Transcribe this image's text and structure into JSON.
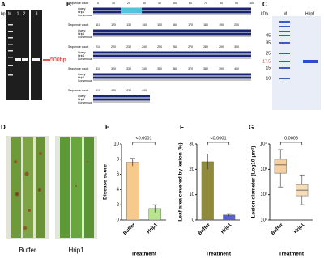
{
  "panels": {
    "A": {
      "label": "A",
      "bp": "bp",
      "lanes": [
        "M",
        "1",
        "2",
        "3"
      ],
      "arrow_label": "500bp"
    },
    "B": {
      "label": "B",
      "row_header": "Sequence count",
      "seq_names": [
        "Query",
        "Hrip1",
        "Consensus"
      ],
      "rows": [
        [
          0,
          10,
          20,
          30,
          40,
          50,
          60,
          70,
          80,
          90,
          100
        ],
        [
          110,
          120,
          130,
          140,
          150,
          160,
          170,
          180,
          190,
          200
        ],
        [
          210,
          220,
          230,
          240,
          250,
          260,
          270,
          280,
          290,
          300
        ],
        [
          310,
          320,
          330,
          340,
          350,
          360,
          370,
          380,
          390,
          400
        ],
        [
          410,
          420,
          430,
          440
        ]
      ]
    },
    "C": {
      "label": "C",
      "unit": "kDa",
      "lanes": [
        "M",
        "Hrip1"
      ],
      "markers": [
        "45",
        "35",
        "25",
        "17.5",
        "15",
        "10"
      ]
    },
    "D": {
      "label": "D",
      "photos": [
        "Buffer",
        "Hrip1"
      ]
    }
  },
  "chart_data": [
    {
      "type": "bar",
      "panel_label": "E",
      "y_label": "Disease score",
      "x_label": "Treatment",
      "categories": [
        "Buffer",
        "Hrip1"
      ],
      "values": [
        7.6,
        1.5
      ],
      "errors": [
        0.5,
        0.5
      ],
      "colors": [
        "#f8c98c",
        "#b8e48f"
      ],
      "ylim": [
        0,
        10
      ],
      "yticks": [
        0,
        2,
        4,
        6,
        8,
        10
      ],
      "annotation": "<0.0001"
    },
    {
      "type": "bar",
      "panel_label": "F",
      "y_label": "Leaf area covered by lesion (%)",
      "x_label": "Treatment",
      "categories": [
        "Buffer",
        "Hrip1"
      ],
      "values": [
        23,
        2
      ],
      "errors": [
        3,
        0.5
      ],
      "colors": [
        "#8f8a3c",
        "#5a5fd6"
      ],
      "ylim": [
        0,
        30
      ],
      "yticks": [
        0,
        10,
        20,
        30
      ],
      "annotation": "<0.0001"
    },
    {
      "type": "box",
      "panel_label": "G",
      "y_label": "Lesion diameter (Log10 μm²)",
      "x_label": "Treatment",
      "log_scale": true,
      "categories": [
        "Buffer",
        "Hrip1"
      ],
      "min": [
        200,
        40
      ],
      "q1": [
        700,
        90
      ],
      "median": [
        1500,
        150
      ],
      "q3": [
        2500,
        250
      ],
      "max": [
        6000,
        600
      ],
      "colors": [
        "#f5cfa0",
        "#f7dcb8"
      ],
      "ylim": [
        10,
        10000
      ],
      "yticks": [
        {
          "value": 10,
          "label": "10¹"
        },
        {
          "value": 100,
          "label": "10²"
        },
        {
          "value": 1000,
          "label": "10³"
        },
        {
          "value": 10000,
          "label": "10⁴"
        }
      ],
      "annotation": "0.0008"
    }
  ]
}
